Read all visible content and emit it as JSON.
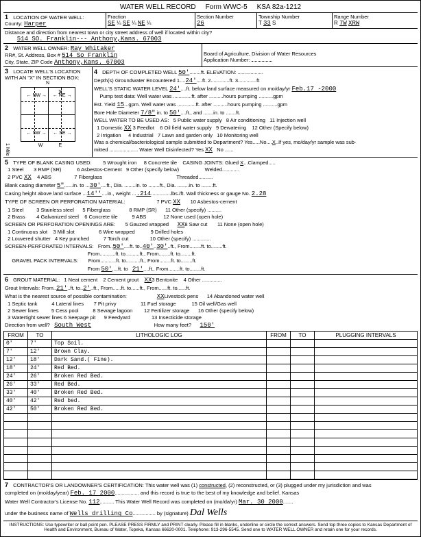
{
  "form": {
    "title": "WATER WELL RECORD",
    "formNo": "Form WWC-5",
    "ksa": "KSA 82a-1212"
  },
  "loc": {
    "county": "Harper",
    "frac1": "SE",
    "frac2": "SE",
    "frac3": "NE",
    "sectionNo": "26",
    "township": "33",
    "townshipDir": "S",
    "range": "7W",
    "rangeDir": "XRW",
    "address": "514 SO. Franklin--- Anthony,Kans. 67003"
  },
  "owner": {
    "name": "Ray Whitaker",
    "street": "514 So Franklin",
    "cityzip": "Anthony,Kans. 67003",
    "board": "Board of Agriculture, Division of Water Resources",
    "appNo": ""
  },
  "depth": {
    "completed": "50'",
    "elevation": "",
    "gw1": "24'",
    "gw2": "",
    "gw3": "3",
    "static": "24'",
    "staticDate": "Feb.17 -2000",
    "estYield": "15",
    "boreDia": "7/8\"",
    "boreTo": "50'",
    "domestic": "XX",
    "disinfected": "XX"
  },
  "casing": {
    "pvc": "XX",
    "dia": "5\"",
    "diaTo": "30'",
    "heightAbove": "14''",
    "weight": ".214",
    "wallGauge": "2.28",
    "pvcScreen": "XX",
    "sawCut": "XX",
    "perfFrom1": "50'",
    "perfTo1a": "40'",
    "perfTo1b": "30'",
    "gravelFrom": "50'",
    "gravelTo": "21'"
  },
  "grout": {
    "bentonite": "XX",
    "from": "21'",
    "to": "2'",
    "livestock": "XX",
    "direction": "South West",
    "feet": "150'"
  },
  "log": {
    "headers": [
      "FROM",
      "TO",
      "LITHOLOGIC LOG",
      "FROM",
      "TO",
      "PLUGGING INTERVALS"
    ],
    "rows": [
      [
        "0'",
        "7'",
        "Top Soil.",
        "",
        "",
        ""
      ],
      [
        "7'",
        "12'",
        "Brown Clay.",
        "",
        "",
        ""
      ],
      [
        "12'",
        "18'",
        "Dark Sand.( Fine).",
        "",
        "",
        ""
      ],
      [
        "18'",
        "24'",
        "Red Bed.",
        "",
        "",
        ""
      ],
      [
        "24'",
        "26'",
        "Broken Red Bed.",
        "",
        "",
        ""
      ],
      [
        "26'",
        "33'",
        "Red Bed.",
        "",
        "",
        ""
      ],
      [
        "33'",
        "40'",
        "Broken Red Bed.",
        "",
        "",
        ""
      ],
      [
        "40'",
        "42'",
        "Red bed.",
        "",
        "",
        ""
      ],
      [
        "42'",
        "50'",
        "Broken Red Bed.",
        "",
        "",
        ""
      ],
      [
        "",
        "",
        "",
        "",
        "",
        ""
      ],
      [
        "",
        "",
        "",
        "",
        "",
        ""
      ],
      [
        "",
        "",
        "",
        "",
        "",
        ""
      ],
      [
        "",
        "",
        "",
        "",
        "",
        ""
      ],
      [
        "",
        "",
        "",
        "",
        "",
        ""
      ],
      [
        "",
        "",
        "",
        "",
        "",
        ""
      ],
      [
        "",
        "",
        "",
        "",
        "",
        ""
      ],
      [
        "",
        "",
        "",
        "",
        "",
        ""
      ]
    ]
  },
  "cert": {
    "date": "Feb. 17 2000",
    "license": "112",
    "recordDate": "Mar. 30 2000",
    "business": "Wells drilling Co",
    "signature": "Dal Wells"
  },
  "instr": "INSTRUCTIONS: Use typewriter or ball point pen. PLEASE PRESS FIRMLY and PRINT clearly. Please fill in blanks, underline or circle the correct answers. Send top three copies to Kansas Department of Health and Environment, Bureau of Water, Topeka, Kansas 66620-0001. Telephone: 913-296-5545. Send one to WATER WELL OWNER and retain one for your records."
}
